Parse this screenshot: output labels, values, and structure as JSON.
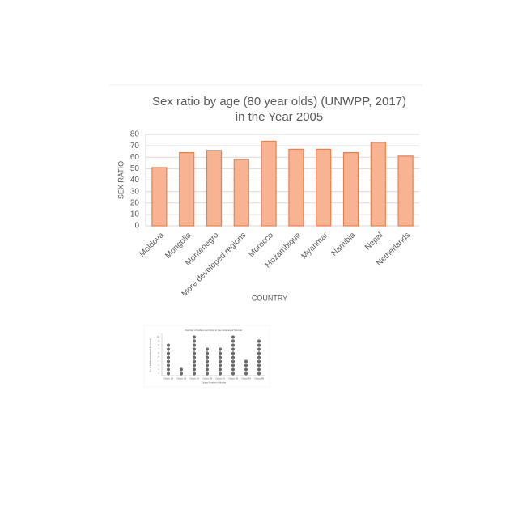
{
  "chart_data": [
    {
      "type": "bar",
      "title": [
        "Sex ratio by age (80 year olds) (UNWPP, 2017)",
        "in the Year 2005"
      ],
      "x_label": "COUNTRY",
      "y_label": "SEX RATIO",
      "categories": [
        "Moldova",
        "Mongolia",
        "Montenegro",
        "More developed regions",
        "Morocco",
        "Mozambique",
        "Myanmar",
        "Namibia",
        "Nepal",
        "Netherlands"
      ],
      "values": [
        51,
        64,
        66,
        58,
        74,
        67,
        67,
        64,
        73,
        61
      ],
      "color": "#f7b392",
      "edge_color": "#e8804e",
      "ylim": [
        0,
        80
      ],
      "yticks": [
        0,
        10,
        20,
        30,
        40,
        50,
        60,
        70,
        80
      ],
      "grid": true
    },
    {
      "type": "dot",
      "title": "Number of babies surviving in the colonies of Mondar",
      "x_label": "Colony Number in Mondar",
      "y_label": "No. of babies surviving in the colony",
      "categories": [
        "Colony 1A",
        "Colony 1B",
        "Colony 2A",
        "Colony 2B",
        "Colony 3A",
        "Colony 3B",
        "Colony 4A",
        "Colony 4B"
      ],
      "values": [
        8,
        2,
        10,
        7,
        7,
        10,
        4,
        9
      ],
      "color": "#6d6d6d",
      "ylim": [
        0,
        10
      ],
      "yticks": [
        1,
        2,
        3,
        4,
        5,
        6,
        7,
        8,
        9,
        10
      ],
      "grid": false
    }
  ]
}
